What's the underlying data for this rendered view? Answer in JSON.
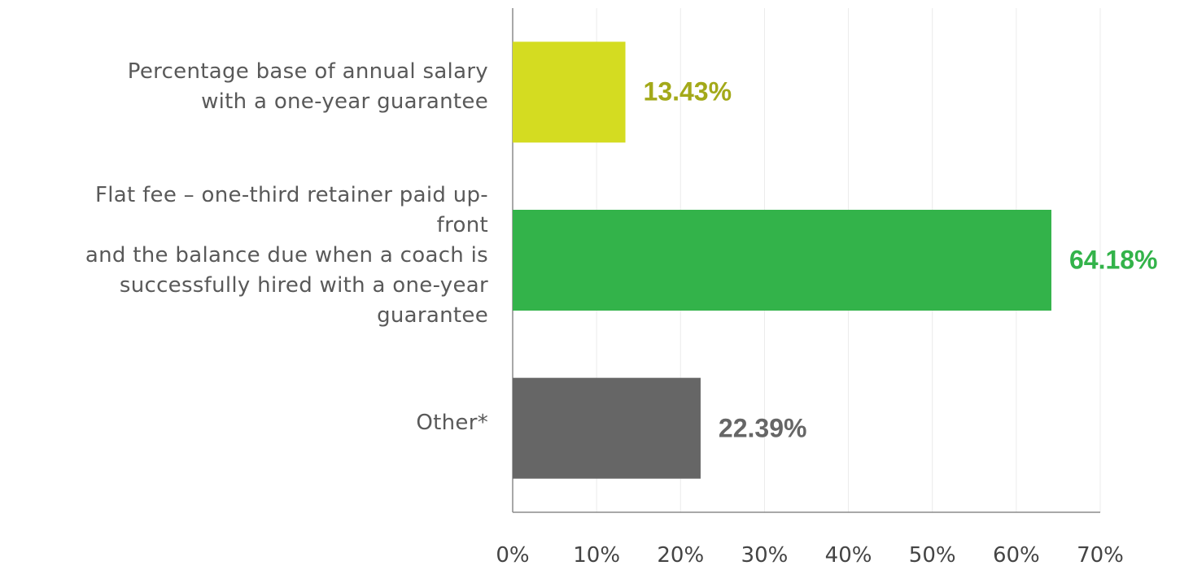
{
  "chart_data": {
    "type": "barh",
    "categories": [
      "Percentage base of annual salary\nwith a one-year guarantee",
      "Flat fee – one-third retainer paid up-\nfront\nand the balance due when a coach is\nsuccessfully hired with a one-year\nguarantee",
      "Other*"
    ],
    "values": [
      13.43,
      64.18,
      22.39
    ],
    "value_labels": [
      "13.43%",
      "64.18%",
      "22.39%"
    ],
    "colors": [
      "#d4dc21",
      "#33b34a",
      "#666666"
    ],
    "label_colors": [
      "#a3a919",
      "#33b34a",
      "#666666"
    ],
    "xlim": [
      0,
      70
    ],
    "xticks": [
      {
        "value": 0,
        "label": "0%"
      },
      {
        "value": 10,
        "label": "10%"
      },
      {
        "value": 20,
        "label": "20%"
      },
      {
        "value": 30,
        "label": "30%"
      },
      {
        "value": 40,
        "label": "40%"
      },
      {
        "value": 50,
        "label": "50%"
      },
      {
        "value": 60,
        "label": "60%"
      },
      {
        "value": 70,
        "label": "70%"
      }
    ],
    "grid": true
  }
}
